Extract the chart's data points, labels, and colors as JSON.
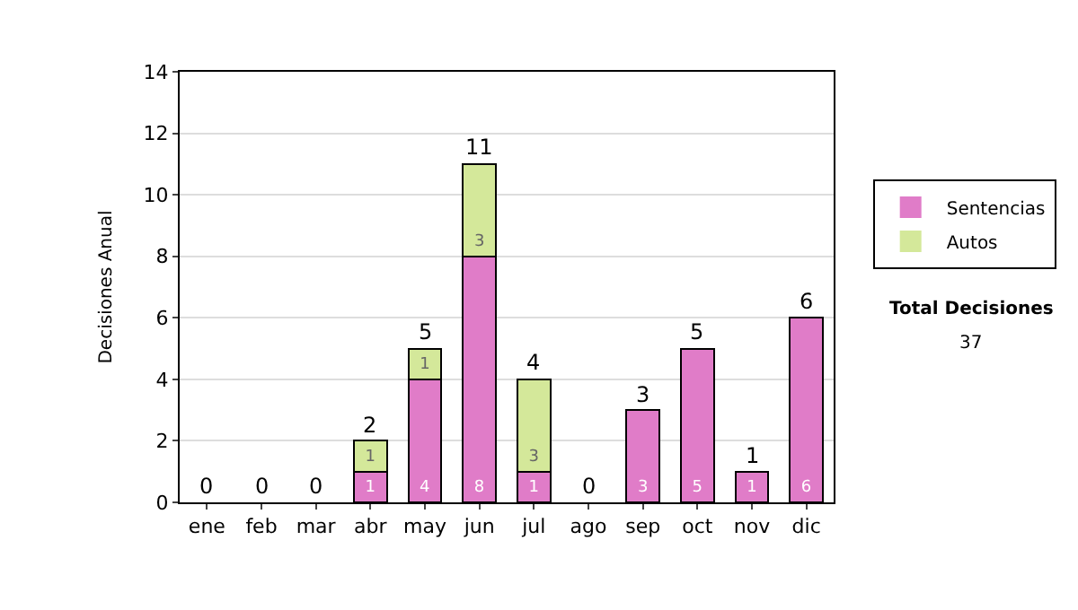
{
  "chart_data": {
    "type": "bar",
    "stacked": true,
    "ylabel": "Decisiones Anual",
    "categories": [
      "ene",
      "feb",
      "mar",
      "abr",
      "may",
      "jun",
      "jul",
      "ago",
      "sep",
      "oct",
      "nov",
      "dic"
    ],
    "series": [
      {
        "name": "Sentencias",
        "color": "#e07cc8",
        "values": [
          0,
          0,
          0,
          1,
          4,
          8,
          1,
          0,
          3,
          5,
          1,
          6
        ],
        "value_labels": [
          null,
          null,
          null,
          "1",
          "4",
          "8",
          "1",
          null,
          "3",
          "5",
          "1",
          "6"
        ]
      },
      {
        "name": "Autos",
        "color": "#d4e89a",
        "values": [
          0,
          0,
          0,
          1,
          1,
          3,
          3,
          0,
          0,
          0,
          0,
          0
        ],
        "value_labels": [
          null,
          null,
          null,
          "1",
          "1",
          "3",
          "3",
          null,
          null,
          null,
          null,
          null
        ]
      }
    ],
    "totals": [
      "0",
      "0",
      "0",
      "2",
      "5",
      "11",
      "4",
      "0",
      "3",
      "5",
      "1",
      "6"
    ],
    "ylim": [
      0,
      14
    ],
    "yticks": [
      0,
      2,
      4,
      6,
      8,
      10,
      12,
      14
    ],
    "grid": "y",
    "legend": "right",
    "annotations": [
      "Total Decisiones",
      "37"
    ]
  }
}
